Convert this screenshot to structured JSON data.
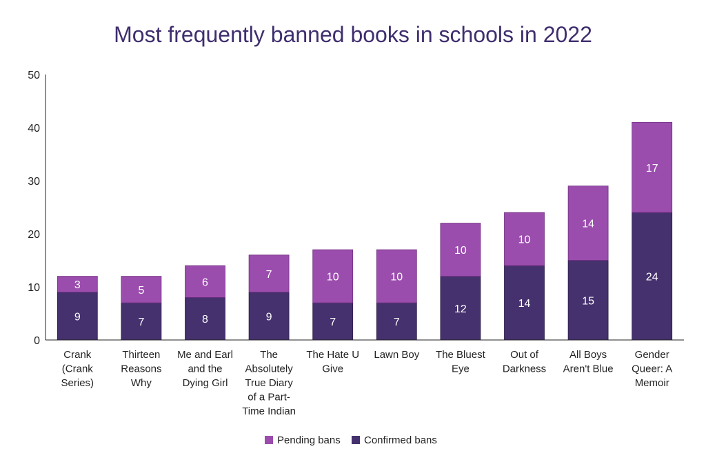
{
  "chart_data": {
    "type": "bar",
    "stacked": true,
    "title": "Most frequently banned books in schools in 2022",
    "xlabel": "",
    "ylabel": "",
    "ylim": [
      0,
      50
    ],
    "yticks": [
      0,
      10,
      20,
      30,
      40,
      50
    ],
    "grid": false,
    "legend_position": "bottom",
    "categories": [
      [
        "Crank",
        "(Crank",
        "Series)"
      ],
      [
        "Thirteen",
        "Reasons",
        "Why"
      ],
      [
        "Me and Earl",
        "and the",
        "Dying Girl"
      ],
      [
        "The",
        "Absolutely",
        "True Diary",
        "of a Part-",
        "Time Indian"
      ],
      [
        "The Hate U",
        "Give"
      ],
      [
        "Lawn Boy"
      ],
      [
        "The Bluest",
        "Eye"
      ],
      [
        "Out of",
        "Darkness"
      ],
      [
        "All Boys",
        "Aren't Blue"
      ],
      [
        "Gender",
        "Queer: A",
        "Memoir"
      ]
    ],
    "series": [
      {
        "name": "Confirmed bans",
        "color": "#45316e",
        "values": [
          9,
          7,
          8,
          9,
          7,
          7,
          12,
          14,
          15,
          24
        ]
      },
      {
        "name": "Pending bans",
        "color": "#9b4dae",
        "values": [
          3,
          5,
          6,
          7,
          10,
          10,
          10,
          10,
          14,
          17
        ]
      }
    ],
    "legend": [
      "Pending bans",
      "Confirmed bans"
    ]
  }
}
